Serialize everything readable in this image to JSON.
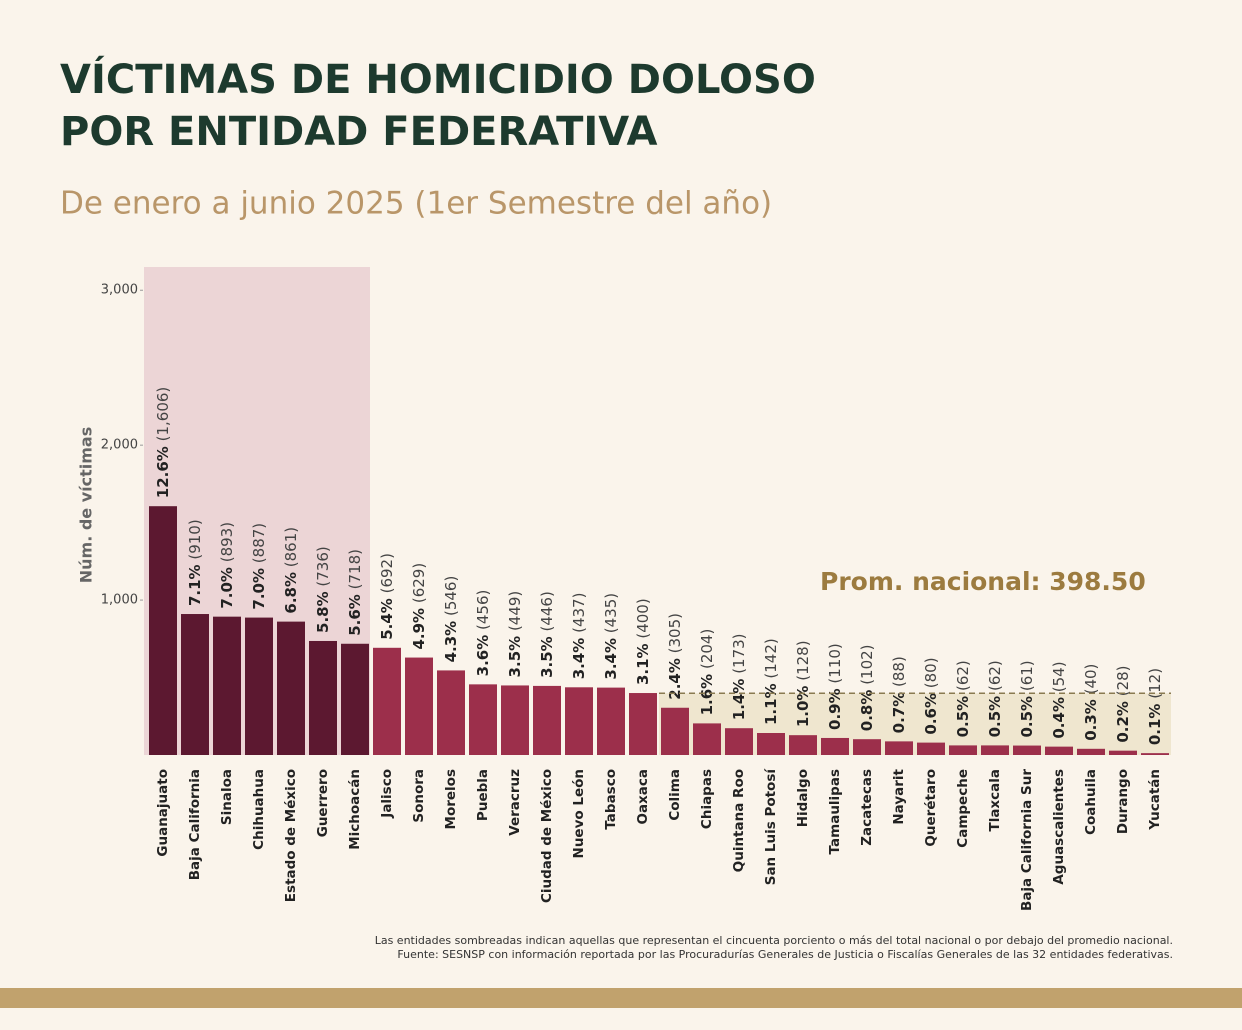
{
  "chart_data": {
    "type": "bar",
    "title": [
      "VÍCTIMAS DE HOMICIDIO DOLOSO",
      "POR ENTIDAD FEDERATIVA"
    ],
    "subtitle": "De enero a junio 2025 (1er Semestre del año)",
    "y_label": "Núm. de víctimas",
    "categories": [
      "Guanajuato",
      "Baja California",
      "Sinaloa",
      "Chihuahua",
      "Estado de México",
      "Guerrero",
      "Michoacán",
      "Jalisco",
      "Sonora",
      "Morelos",
      "Puebla",
      "Veracruz",
      "Ciudad de México",
      "Nuevo León",
      "Tabasco",
      "Oaxaca",
      "Colima",
      "Chiapas",
      "Quintana Roo",
      "San Luis Potosí",
      "Hidalgo",
      "Tamaulipas",
      "Zacatecas",
      "Nayarit",
      "Querétaro",
      "Campeche",
      "Tlaxcala",
      "Baja California Sur",
      "Aguascalientes",
      "Coahuila",
      "Durango",
      "Yucatán"
    ],
    "values": [
      1606,
      910,
      893,
      887,
      861,
      736,
      718,
      692,
      629,
      546,
      456,
      449,
      446,
      437,
      435,
      400,
      305,
      204,
      173,
      142,
      128,
      110,
      102,
      88,
      80,
      62,
      62,
      61,
      54,
      40,
      28,
      12
    ],
    "value_labels": [
      "(1,606)",
      "(910)",
      "(893)",
      "(887)",
      "(861)",
      "(736)",
      "(718)",
      "(692)",
      "(629)",
      "(546)",
      "(456)",
      "(449)",
      "(446)",
      "(437)",
      "(435)",
      "(400)",
      "(305)",
      "(204)",
      "(173)",
      "(142)",
      "(128)",
      "(110)",
      "(102)",
      "(88)",
      "(80)",
      "(62)",
      "(62)",
      "(61)",
      "(54)",
      "(40)",
      "(28)",
      "(12)"
    ],
    "shares": [
      12.6,
      7.1,
      7.0,
      7.0,
      6.8,
      5.8,
      5.6,
      5.4,
      4.9,
      4.3,
      3.6,
      3.5,
      3.5,
      3.4,
      3.4,
      3.1,
      2.4,
      1.6,
      1.4,
      1.1,
      1.0,
      0.9,
      0.8,
      0.7,
      0.6,
      0.5,
      0.5,
      0.5,
      0.4,
      0.3,
      0.2,
      0.1
    ],
    "share_labels": [
      "12.6%",
      "7.1%",
      "7.0%",
      "7.0%",
      "6.8%",
      "5.8%",
      "5.6%",
      "5.4%",
      "4.9%",
      "4.3%",
      "3.6%",
      "3.5%",
      "3.5%",
      "3.4%",
      "3.4%",
      "3.1%",
      "2.4%",
      "1.6%",
      "1.4%",
      "1.1%",
      "1.0%",
      "0.9%",
      "0.8%",
      "0.7%",
      "0.6%",
      "0.5%",
      "0.5%",
      "0.5%",
      "0.4%",
      "0.3%",
      "0.2%",
      "0.1%"
    ],
    "color": "#9c2f4b",
    "highlight_color": "#5c1830",
    "average": 398.5,
    "average_label": "Prom. nacional: 398.50",
    "ylim": [
      0,
      3150
    ],
    "yticks": [
      {
        "value": 1000,
        "label": "1,000"
      },
      {
        "value": 2000,
        "label": "2,000"
      },
      {
        "value": 3000,
        "label": "3,000"
      }
    ],
    "notes": [
      "Las entidades sombreadas indican aquellas que representan el cincuenta porciento o más del total nacional o por debajo del promedio nacional.",
      "Fuente: SESNSP con información reportada por las Procuradurías Generales de Justicia o Fiscalías Generales de las 32 entidades federativas."
    ]
  }
}
